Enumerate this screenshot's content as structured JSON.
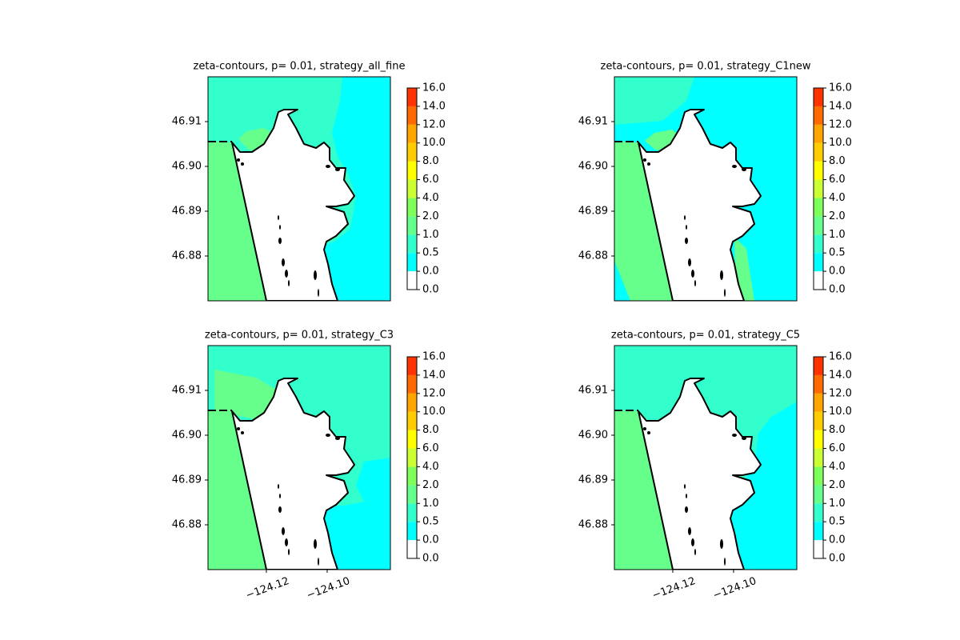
{
  "chart_data": [
    {
      "type": "contour",
      "title": "zeta-contours, p= 0.01, strategy_all_fine",
      "xlim": [
        -124.1392,
        -124.0792
      ],
      "ylim": [
        46.87,
        46.92
      ],
      "yticks": [
        46.88,
        46.89,
        {
          "value": 46.9,
          "label": "46.90"
        },
        46.91
      ],
      "colorbar": {
        "ticks": [
          {
            "value": 0,
            "label": "0.0"
          },
          {
            "value": 0.01,
            "label": "0.0"
          },
          {
            "value": 0.5,
            "label": "0.5"
          },
          {
            "value": 1,
            "label": "1.0"
          },
          {
            "value": 2,
            "label": "2.0"
          },
          {
            "value": 4,
            "label": "4.0"
          },
          {
            "value": 6,
            "label": "6.0"
          },
          {
            "value": 8,
            "label": "8.0"
          },
          {
            "value": 10,
            "label": "10.0"
          },
          {
            "value": 12,
            "label": "12.0"
          },
          {
            "value": 14,
            "label": "14.0"
          },
          {
            "value": 16,
            "label": "16.0"
          }
        ],
        "colors": [
          "#ffffff",
          "#00ffff",
          "#33ffcc",
          "#66ff8c",
          "#7fff59",
          "#ccff33",
          "#ffff00",
          "#ffcc00",
          "#ffa500",
          "#ff6a00",
          "#ff3300"
        ]
      }
    },
    {
      "type": "contour",
      "title": "zeta-contours, p= 0.01, strategy_C1new",
      "xlim": [
        -124.1392,
        -124.0792
      ],
      "ylim": [
        46.87,
        46.92
      ],
      "yticks": [
        46.88,
        46.89,
        {
          "value": 46.9,
          "label": "46.90"
        },
        46.91
      ],
      "colorbar": {
        "ticks": [
          {
            "value": 0,
            "label": "0.0"
          },
          {
            "value": 0.01,
            "label": "0.0"
          },
          {
            "value": 0.5,
            "label": "0.5"
          },
          {
            "value": 1,
            "label": "1.0"
          },
          {
            "value": 2,
            "label": "2.0"
          },
          {
            "value": 4,
            "label": "4.0"
          },
          {
            "value": 6,
            "label": "6.0"
          },
          {
            "value": 8,
            "label": "8.0"
          },
          {
            "value": 10,
            "label": "10.0"
          },
          {
            "value": 12,
            "label": "12.0"
          },
          {
            "value": 14,
            "label": "14.0"
          },
          {
            "value": 16,
            "label": "16.0"
          }
        ],
        "colors": [
          "#ffffff",
          "#00ffff",
          "#33ffcc",
          "#66ff8c",
          "#7fff59",
          "#ccff33",
          "#ffff00",
          "#ffcc00",
          "#ffa500",
          "#ff6a00",
          "#ff3300"
        ]
      }
    },
    {
      "type": "contour",
      "title": "zeta-contours, p= 0.01, strategy_C3",
      "xlim": [
        -124.1392,
        -124.0792
      ],
      "ylim": [
        46.87,
        46.92
      ],
      "xticks": [
        {
          "value": -124.12,
          "label": "−124.12"
        },
        {
          "value": -124.1,
          "label": "−124.10"
        }
      ],
      "yticks": [
        46.88,
        46.89,
        {
          "value": 46.9,
          "label": "46.90"
        },
        46.91
      ],
      "colorbar": {
        "ticks": [
          {
            "value": 0,
            "label": "0.0"
          },
          {
            "value": 0.01,
            "label": "0.0"
          },
          {
            "value": 0.5,
            "label": "0.5"
          },
          {
            "value": 1,
            "label": "1.0"
          },
          {
            "value": 2,
            "label": "2.0"
          },
          {
            "value": 4,
            "label": "4.0"
          },
          {
            "value": 6,
            "label": "6.0"
          },
          {
            "value": 8,
            "label": "8.0"
          },
          {
            "value": 10,
            "label": "10.0"
          },
          {
            "value": 12,
            "label": "12.0"
          },
          {
            "value": 14,
            "label": "14.0"
          },
          {
            "value": 16,
            "label": "16.0"
          }
        ],
        "colors": [
          "#ffffff",
          "#00ffff",
          "#33ffcc",
          "#66ff8c",
          "#7fff59",
          "#ccff33",
          "#ffff00",
          "#ffcc00",
          "#ffa500",
          "#ff6a00",
          "#ff3300"
        ]
      }
    },
    {
      "type": "contour",
      "title": "zeta-contours, p= 0.01, strategy_C5",
      "xlim": [
        -124.1392,
        -124.0792
      ],
      "ylim": [
        46.87,
        46.92
      ],
      "xticks": [
        {
          "value": -124.12,
          "label": "−124.12"
        },
        {
          "value": -124.1,
          "label": "−124.10"
        }
      ],
      "yticks": [
        46.88,
        46.89,
        {
          "value": 46.9,
          "label": "46.90"
        },
        46.91
      ],
      "colorbar": {
        "ticks": [
          {
            "value": 0,
            "label": "0.0"
          },
          {
            "value": 0.01,
            "label": "0.0"
          },
          {
            "value": 0.5,
            "label": "0.5"
          },
          {
            "value": 1,
            "label": "1.0"
          },
          {
            "value": 2,
            "label": "2.0"
          },
          {
            "value": 4,
            "label": "4.0"
          },
          {
            "value": 6,
            "label": "6.0"
          },
          {
            "value": 8,
            "label": "8.0"
          },
          {
            "value": 10,
            "label": "10.0"
          },
          {
            "value": 12,
            "label": "12.0"
          },
          {
            "value": 14,
            "label": "14.0"
          },
          {
            "value": 16,
            "label": "16.0"
          }
        ],
        "colors": [
          "#ffffff",
          "#00ffff",
          "#33ffcc",
          "#66ff8c",
          "#7fff59",
          "#ccff33",
          "#ffff00",
          "#ffcc00",
          "#ffa500",
          "#ff6a00",
          "#ff3300"
        ]
      }
    }
  ]
}
